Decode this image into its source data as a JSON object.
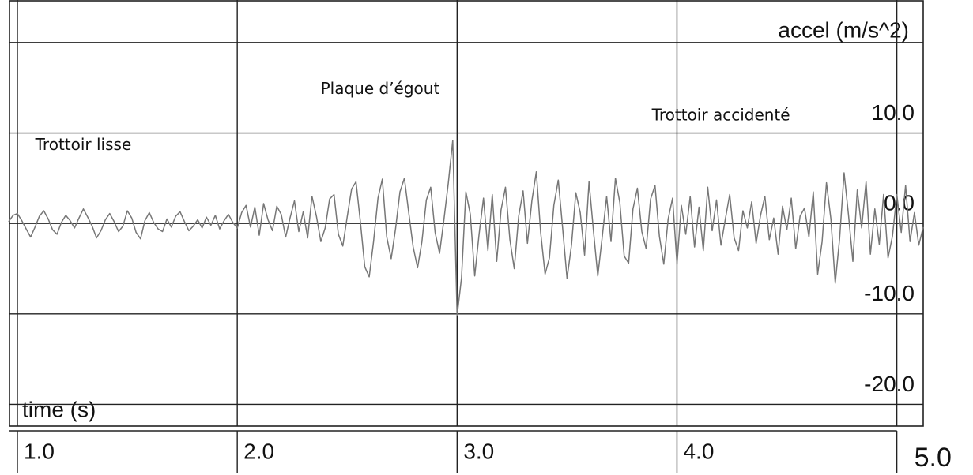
{
  "chart_data": {
    "type": "line",
    "x_label": "time (s)",
    "y_label": "accel (m/s^2)",
    "xlim": [
      0.964,
      5.12
    ],
    "ylim": [
      -22.4,
      24.7
    ],
    "xticks": [
      {
        "value": 1,
        "label": "1.0"
      },
      {
        "value": 2,
        "label": "2.0"
      },
      {
        "value": 3,
        "label": "3.0"
      },
      {
        "value": 4,
        "label": "4.0"
      },
      {
        "value": 5,
        "label": "5.0"
      }
    ],
    "yticks": [
      {
        "value": 20,
        "label": null
      },
      {
        "value": 10,
        "label": "10.0"
      },
      {
        "value": 0,
        "label": "0.0"
      },
      {
        "value": -10,
        "label": "-10.0"
      },
      {
        "value": -20,
        "label": "-20.0"
      }
    ],
    "grid": true,
    "annotations": [
      {
        "text": "Trottoir lisse",
        "x": 1.3,
        "y": 8.6
      },
      {
        "text": "Plaque d’égout",
        "x": 2.65,
        "y": 14.8
      },
      {
        "text": "Trottoir accidenté",
        "x": 4.2,
        "y": 11.9
      }
    ],
    "series": [
      {
        "color": "#777777",
        "x": [
          0.96,
          0.98,
          1.0,
          1.02,
          1.04,
          1.06,
          1.08,
          1.1,
          1.12,
          1.14,
          1.16,
          1.18,
          1.2,
          1.22,
          1.24,
          1.26,
          1.28,
          1.3,
          1.32,
          1.34,
          1.36,
          1.38,
          1.4,
          1.42,
          1.44,
          1.46,
          1.48,
          1.5,
          1.52,
          1.54,
          1.56,
          1.58,
          1.6,
          1.62,
          1.64,
          1.66,
          1.68,
          1.7,
          1.72,
          1.74,
          1.76,
          1.78,
          1.8,
          1.82,
          1.84,
          1.86,
          1.88,
          1.9,
          1.92,
          1.94,
          1.96,
          1.98,
          2.0,
          2.02,
          2.04,
          2.06,
          2.08,
          2.1,
          2.12,
          2.14,
          2.16,
          2.18,
          2.2,
          2.22,
          2.24,
          2.26,
          2.28,
          2.3,
          2.32,
          2.34,
          2.36,
          2.38,
          2.4,
          2.42,
          2.44,
          2.46,
          2.48,
          2.5,
          2.52,
          2.54,
          2.56,
          2.58,
          2.6,
          2.62,
          2.64,
          2.66,
          2.68,
          2.7,
          2.72,
          2.74,
          2.76,
          2.78,
          2.8,
          2.82,
          2.84,
          2.86,
          2.88,
          2.9,
          2.92,
          2.94,
          2.96,
          2.98,
          3.0,
          3.02,
          3.04,
          3.06,
          3.08,
          3.1,
          3.12,
          3.14,
          3.16,
          3.18,
          3.2,
          3.22,
          3.24,
          3.26,
          3.28,
          3.3,
          3.32,
          3.34,
          3.36,
          3.38,
          3.4,
          3.42,
          3.44,
          3.46,
          3.48,
          3.5,
          3.52,
          3.54,
          3.56,
          3.58,
          3.6,
          3.62,
          3.64,
          3.66,
          3.68,
          3.7,
          3.72,
          3.74,
          3.76,
          3.78,
          3.8,
          3.82,
          3.84,
          3.86,
          3.88,
          3.9,
          3.92,
          3.94,
          3.96,
          3.98,
          4.0,
          4.02,
          4.04,
          4.06,
          4.08,
          4.1,
          4.12,
          4.14,
          4.16,
          4.18,
          4.2,
          4.22,
          4.24,
          4.26,
          4.28,
          4.3,
          4.32,
          4.34,
          4.36,
          4.38,
          4.4,
          4.42,
          4.44,
          4.46,
          4.48,
          4.5,
          4.52,
          4.54,
          4.56,
          4.58,
          4.6,
          4.62,
          4.64,
          4.66,
          4.68,
          4.7,
          4.72,
          4.74,
          4.76,
          4.78,
          4.8,
          4.82,
          4.84,
          4.86,
          4.88,
          4.9,
          4.92,
          4.94,
          4.96,
          4.98,
          5.0,
          5.02,
          5.04,
          5.06,
          5.08,
          5.1,
          5.12
        ],
        "values": [
          0.2,
          0.9,
          1.1,
          0.3,
          -0.6,
          -1.5,
          -0.4,
          0.8,
          1.4,
          0.5,
          -0.7,
          -1.2,
          0.1,
          0.9,
          0.3,
          -0.5,
          0.6,
          1.6,
          0.7,
          -0.3,
          -1.6,
          -0.8,
          0.4,
          1.1,
          0.2,
          -0.9,
          -0.3,
          1.4,
          0.6,
          -1.0,
          -1.7,
          0.3,
          1.2,
          0.1,
          -0.6,
          -0.9,
          0.5,
          -0.4,
          0.8,
          1.3,
          0.2,
          -0.8,
          -0.3,
          0.4,
          -0.5,
          0.7,
          -0.2,
          0.9,
          -0.6,
          0.3,
          1.0,
          0.1,
          -0.5,
          1.2,
          2.0,
          -0.4,
          1.8,
          -1.3,
          2.2,
          0.4,
          -0.8,
          1.9,
          1.0,
          -1.5,
          0.6,
          2.5,
          -0.9,
          1.3,
          -1.6,
          3.0,
          0.8,
          -2.0,
          -0.5,
          2.7,
          3.2,
          -1.2,
          -2.5,
          0.7,
          3.8,
          4.6,
          0.2,
          -4.8,
          -5.9,
          -2.0,
          2.8,
          4.9,
          -1.5,
          -3.9,
          -0.6,
          3.5,
          5.0,
          1.2,
          -2.6,
          -4.9,
          -2.0,
          2.6,
          4.0,
          -1.0,
          -3.3,
          0.4,
          4.5,
          9.2,
          -10.2,
          -6.0,
          3.5,
          1.0,
          -5.8,
          -1.2,
          2.8,
          -3.0,
          3.2,
          -4.2,
          1.5,
          4.0,
          -1.8,
          -5.0,
          0.8,
          3.6,
          -2.2,
          2.5,
          5.7,
          -1.0,
          -5.6,
          -3.8,
          2.0,
          4.8,
          -0.5,
          -6.1,
          -2.4,
          3.4,
          1.2,
          -3.5,
          4.6,
          -0.8,
          -5.8,
          -1.5,
          3.0,
          -2.0,
          5.0,
          2.3,
          -3.6,
          -4.4,
          1.6,
          3.9,
          -0.9,
          -2.8,
          2.7,
          4.2,
          -1.4,
          -4.5,
          0.5,
          2.8,
          -4.5,
          2.0,
          -1.2,
          3.0,
          -2.6,
          1.8,
          -3.0,
          4.0,
          -0.8,
          2.6,
          -2.4,
          0.5,
          3.2,
          -1.6,
          -3.0,
          1.4,
          -0.5,
          2.4,
          -2.2,
          0.9,
          3.0,
          -1.8,
          0.6,
          -3.4,
          1.9,
          -0.7,
          2.8,
          -2.8,
          0.8,
          1.7,
          -1.5,
          3.5,
          -5.6,
          -2.0,
          4.5,
          0.5,
          -6.6,
          -1.6,
          5.6,
          1.0,
          -4.2,
          3.7,
          -0.5,
          4.6,
          -3.4,
          1.6,
          -2.3,
          3.2,
          -3.8,
          -1.4,
          3.2,
          -1.0,
          4.2,
          -2.0,
          1.2,
          -2.4,
          -0.4
        ]
      }
    ]
  }
}
